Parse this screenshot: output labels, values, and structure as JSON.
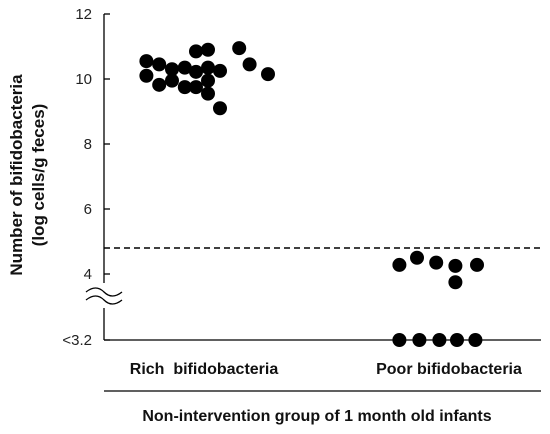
{
  "chart_data": {
    "type": "scatter",
    "title": "",
    "ylabel_line1": "Number of bifidobacteria",
    "ylabel_line2": "(log cells/g feces)",
    "ylim": [
      3.2,
      12
    ],
    "yticks": [
      {
        "value": 12,
        "label": "12"
      },
      {
        "value": 10,
        "label": "10"
      },
      {
        "value": 8,
        "label": "8"
      },
      {
        "value": 6,
        "label": "6"
      },
      {
        "value": 4,
        "label": "4"
      },
      {
        "value": 3.2,
        "label": "<3.2"
      }
    ],
    "axis_break": true,
    "categories": [
      "Rich  bifidobacteria",
      "Poor bifidobacteria"
    ],
    "group_label": "Non-intervention group of 1 month old infants",
    "threshold": 4.8,
    "points": [
      {
        "cat": 0,
        "jitter": -0.72,
        "y": 10.55
      },
      {
        "cat": 0,
        "jitter": -0.72,
        "y": 10.1
      },
      {
        "cat": 0,
        "jitter": -0.56,
        "y": 10.45
      },
      {
        "cat": 0,
        "jitter": -0.56,
        "y": 9.82
      },
      {
        "cat": 0,
        "jitter": -0.4,
        "y": 10.3
      },
      {
        "cat": 0,
        "jitter": -0.4,
        "y": 9.95
      },
      {
        "cat": 0,
        "jitter": -0.24,
        "y": 10.35
      },
      {
        "cat": 0,
        "jitter": -0.24,
        "y": 9.75
      },
      {
        "cat": 0,
        "jitter": -0.1,
        "y": 10.85
      },
      {
        "cat": 0,
        "jitter": -0.1,
        "y": 10.22
      },
      {
        "cat": 0,
        "jitter": -0.1,
        "y": 9.75
      },
      {
        "cat": 0,
        "jitter": 0.05,
        "y": 10.9
      },
      {
        "cat": 0,
        "jitter": 0.05,
        "y": 10.35
      },
      {
        "cat": 0,
        "jitter": 0.05,
        "y": 9.95
      },
      {
        "cat": 0,
        "jitter": 0.05,
        "y": 9.55
      },
      {
        "cat": 0,
        "jitter": 0.2,
        "y": 10.25
      },
      {
        "cat": 0,
        "jitter": 0.2,
        "y": 9.1
      },
      {
        "cat": 0,
        "jitter": 0.44,
        "y": 10.95
      },
      {
        "cat": 0,
        "jitter": 0.57,
        "y": 10.45
      },
      {
        "cat": 0,
        "jitter": 0.8,
        "y": 10.15
      },
      {
        "cat": 1,
        "jitter": -0.62,
        "y": 4.28
      },
      {
        "cat": 1,
        "jitter": -0.4,
        "y": 4.5
      },
      {
        "cat": 1,
        "jitter": -0.16,
        "y": 4.35
      },
      {
        "cat": 1,
        "jitter": 0.08,
        "y": 4.25
      },
      {
        "cat": 1,
        "jitter": 0.08,
        "y": 3.9
      },
      {
        "cat": 1,
        "jitter": 0.35,
        "y": 4.28
      },
      {
        "cat": 1,
        "jitter": -0.62,
        "y": 3.2
      },
      {
        "cat": 1,
        "jitter": -0.37,
        "y": 3.2
      },
      {
        "cat": 1,
        "jitter": -0.12,
        "y": 3.2
      },
      {
        "cat": 1,
        "jitter": 0.1,
        "y": 3.2
      },
      {
        "cat": 1,
        "jitter": 0.33,
        "y": 3.2
      }
    ],
    "grid": false,
    "point_color": "#000000",
    "line_color": "#000000"
  }
}
